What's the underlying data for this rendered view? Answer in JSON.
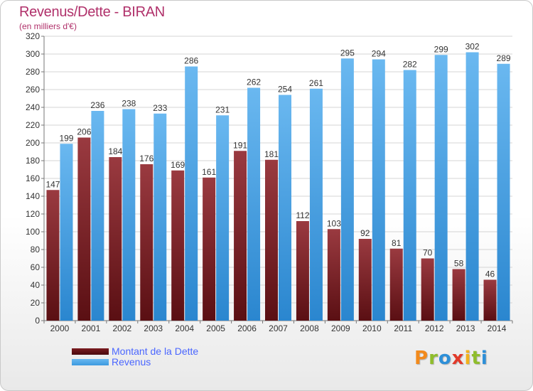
{
  "chart_data": {
    "type": "bar",
    "title": "Revenus/Dette - BIRAN",
    "subtitle": "(en milliers d'€)",
    "categories": [
      "2000",
      "2001",
      "2002",
      "2003",
      "2004",
      "2005",
      "2006",
      "2007",
      "2008",
      "2009",
      "2010",
      "2011",
      "2012",
      "2013",
      "2014"
    ],
    "series": [
      {
        "name": "Montant de la Dette",
        "color": "#7a1a1f",
        "values": [
          147,
          206,
          184,
          176,
          169,
          161,
          191,
          181,
          112,
          103,
          92,
          81,
          70,
          58,
          46
        ]
      },
      {
        "name": "Revenus",
        "color": "#3d9ae0",
        "values": [
          199,
          236,
          238,
          233,
          286,
          231,
          262,
          254,
          261,
          295,
          294,
          282,
          299,
          302,
          289
        ]
      }
    ],
    "ylim": [
      0,
      320
    ],
    "yticks": [
      0,
      20,
      40,
      60,
      80,
      100,
      120,
      140,
      160,
      180,
      200,
      220,
      240,
      260,
      280,
      300,
      320
    ],
    "grid": true,
    "legend_position": "bottom-left",
    "data_labels": true
  },
  "logo": {
    "text": "Proxiti",
    "letters": [
      {
        "ch": "P",
        "color": "#f28a1c"
      },
      {
        "ch": "r",
        "color": "#8fbd2c"
      },
      {
        "ch": "o",
        "color": "#2d8fd8"
      },
      {
        "ch": "x",
        "color": "#e23a2a"
      },
      {
        "ch": "i",
        "color": "#f2b21c"
      },
      {
        "ch": "t",
        "color": "#8fbd2c"
      },
      {
        "ch": "i",
        "color": "#2d8fd8"
      }
    ]
  }
}
